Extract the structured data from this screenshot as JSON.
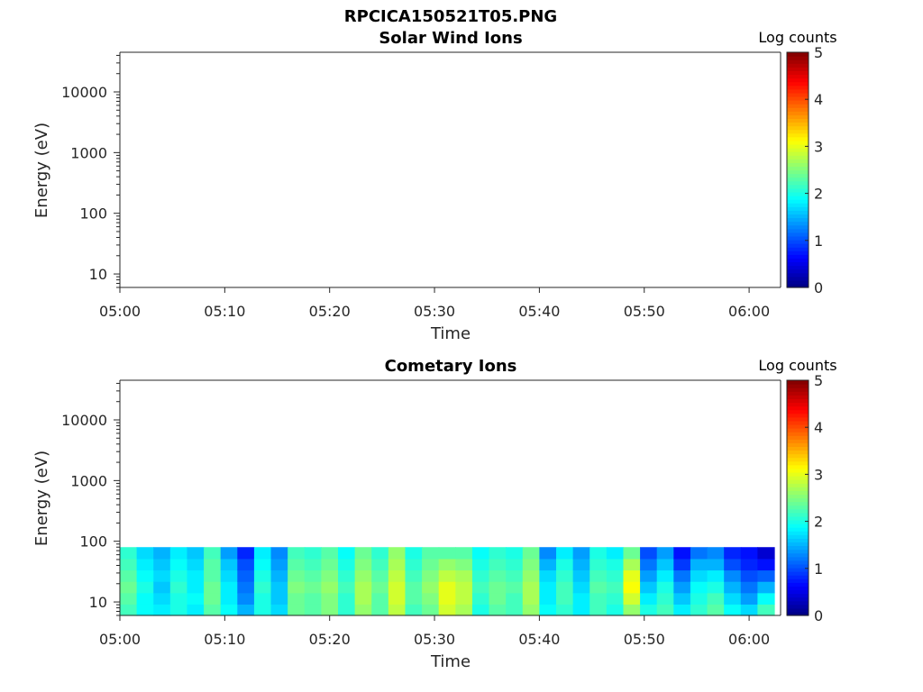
{
  "figure": {
    "title": "RPCICA150521T05.PNG"
  },
  "chart_data": [
    {
      "type": "heatmap",
      "title": "Solar Wind Ions",
      "xlabel": "Time",
      "ylabel": "Energy (eV)",
      "x_ticks": [
        "05:00",
        "05:10",
        "05:20",
        "05:30",
        "05:40",
        "05:50",
        "06:00"
      ],
      "x_range_minutes": [
        0,
        63
      ],
      "y_scale": "log",
      "y_ticks": [
        "10",
        "100",
        "1000",
        "10000"
      ],
      "y_range": [
        6,
        45000
      ],
      "colorbar": {
        "label": "Log counts",
        "range": [
          0,
          5
        ],
        "ticks": [
          "0",
          "1",
          "2",
          "3",
          "4",
          "5"
        ],
        "colormap": "jet"
      },
      "columns": [],
      "energy_range_filled": []
    },
    {
      "type": "heatmap",
      "title": "Cometary Ions",
      "xlabel": "Time",
      "ylabel": "Energy (eV)",
      "x_ticks": [
        "05:00",
        "05:10",
        "05:20",
        "05:30",
        "05:40",
        "05:50",
        "06:00"
      ],
      "x_range_minutes": [
        0,
        63
      ],
      "y_scale": "log",
      "y_ticks": [
        "10",
        "100",
        "1000",
        "10000"
      ],
      "y_range": [
        6,
        45000
      ],
      "colorbar": {
        "label": "Log counts",
        "range": [
          0,
          5
        ],
        "ticks": [
          "0",
          "1",
          "2",
          "3",
          "4",
          "5"
        ],
        "colormap": "jet"
      },
      "energy_range_filled": [
        6,
        80
      ],
      "columns": [
        {
          "t0": 0.0,
          "t1": 1.6,
          "values": [
            2.2,
            2.3,
            2.4,
            2.3,
            2.2,
            2.1
          ]
        },
        {
          "t0": 1.6,
          "t1": 3.2,
          "values": [
            1.9,
            1.9,
            2.0,
            1.9,
            1.8,
            1.7
          ]
        },
        {
          "t0": 3.2,
          "t1": 4.8,
          "values": [
            1.8,
            1.7,
            1.6,
            1.7,
            1.6,
            1.5
          ]
        },
        {
          "t0": 4.8,
          "t1": 6.4,
          "values": [
            2.0,
            2.0,
            2.1,
            2.0,
            1.9,
            1.8
          ]
        },
        {
          "t0": 6.4,
          "t1": 8.0,
          "values": [
            1.8,
            1.9,
            1.8,
            1.8,
            1.7,
            1.6
          ]
        },
        {
          "t0": 8.0,
          "t1": 9.6,
          "values": [
            2.3,
            2.4,
            2.4,
            2.3,
            2.3,
            2.2
          ]
        },
        {
          "t0": 9.6,
          "t1": 11.2,
          "values": [
            1.9,
            1.8,
            1.8,
            1.7,
            1.6,
            1.4
          ]
        },
        {
          "t0": 11.2,
          "t1": 12.8,
          "values": [
            1.5,
            1.3,
            1.2,
            1.1,
            1.0,
            0.8
          ]
        },
        {
          "t0": 12.8,
          "t1": 14.4,
          "values": [
            2.0,
            2.0,
            2.1,
            2.0,
            1.9,
            1.8
          ]
        },
        {
          "t0": 14.4,
          "t1": 16.0,
          "values": [
            1.7,
            1.6,
            1.6,
            1.5,
            1.4,
            1.3
          ]
        },
        {
          "t0": 16.0,
          "t1": 17.6,
          "values": [
            2.4,
            2.4,
            2.5,
            2.4,
            2.3,
            2.2
          ]
        },
        {
          "t0": 17.6,
          "t1": 19.2,
          "values": [
            2.3,
            2.3,
            2.4,
            2.3,
            2.2,
            2.1
          ]
        },
        {
          "t0": 19.2,
          "t1": 20.8,
          "values": [
            2.5,
            2.5,
            2.6,
            2.5,
            2.4,
            2.3
          ]
        },
        {
          "t0": 20.8,
          "t1": 22.4,
          "values": [
            2.1,
            2.1,
            2.2,
            2.1,
            2.0,
            1.9
          ]
        },
        {
          "t0": 22.4,
          "t1": 24.0,
          "values": [
            2.6,
            2.7,
            2.7,
            2.6,
            2.5,
            2.4
          ]
        },
        {
          "t0": 24.0,
          "t1": 25.6,
          "values": [
            2.3,
            2.3,
            2.4,
            2.3,
            2.2,
            2.1
          ]
        },
        {
          "t0": 25.6,
          "t1": 27.2,
          "values": [
            2.8,
            2.9,
            2.9,
            2.8,
            2.7,
            2.6
          ]
        },
        {
          "t0": 27.2,
          "t1": 28.8,
          "values": [
            2.2,
            2.3,
            2.3,
            2.2,
            2.1,
            2.0
          ]
        },
        {
          "t0": 28.8,
          "t1": 30.4,
          "values": [
            2.4,
            2.5,
            2.6,
            2.5,
            2.4,
            2.3
          ]
        },
        {
          "t0": 30.4,
          "t1": 32.0,
          "values": [
            2.9,
            3.0,
            3.0,
            2.8,
            2.6,
            2.3
          ]
        },
        {
          "t0": 32.0,
          "t1": 33.6,
          "values": [
            2.7,
            2.8,
            2.8,
            2.7,
            2.5,
            2.3
          ]
        },
        {
          "t0": 33.6,
          "t1": 35.2,
          "values": [
            2.0,
            2.1,
            2.2,
            2.1,
            2.0,
            1.9
          ]
        },
        {
          "t0": 35.2,
          "t1": 36.8,
          "values": [
            2.3,
            2.4,
            2.4,
            2.3,
            2.2,
            2.1
          ]
        },
        {
          "t0": 36.8,
          "t1": 38.4,
          "values": [
            2.2,
            2.2,
            2.3,
            2.2,
            2.1,
            2.0
          ]
        },
        {
          "t0": 38.4,
          "t1": 40.0,
          "values": [
            2.6,
            2.7,
            2.7,
            2.6,
            2.5,
            2.4
          ]
        },
        {
          "t0": 40.0,
          "t1": 41.6,
          "values": [
            1.9,
            1.8,
            1.8,
            1.7,
            1.5,
            1.3
          ]
        },
        {
          "t0": 41.6,
          "t1": 43.2,
          "values": [
            2.1,
            2.2,
            2.2,
            2.1,
            2.0,
            1.8
          ]
        },
        {
          "t0": 43.2,
          "t1": 44.8,
          "values": [
            1.8,
            1.8,
            1.7,
            1.6,
            1.5,
            1.4
          ]
        },
        {
          "t0": 44.8,
          "t1": 46.4,
          "values": [
            2.2,
            2.2,
            2.3,
            2.2,
            2.1,
            2.0
          ]
        },
        {
          "t0": 46.4,
          "t1": 48.0,
          "values": [
            2.0,
            2.1,
            2.2,
            2.1,
            2.0,
            1.8
          ]
        },
        {
          "t0": 48.0,
          "t1": 49.6,
          "values": [
            2.6,
            2.9,
            3.1,
            3.0,
            2.7,
            2.4
          ]
        },
        {
          "t0": 49.6,
          "t1": 51.2,
          "values": [
            2.0,
            1.8,
            1.6,
            1.4,
            1.2,
            1.0
          ]
        },
        {
          "t0": 51.2,
          "t1": 52.8,
          "values": [
            2.2,
            2.1,
            2.0,
            1.8,
            1.6,
            1.4
          ]
        },
        {
          "t0": 52.8,
          "t1": 54.4,
          "values": [
            1.8,
            1.6,
            1.4,
            1.2,
            0.9,
            0.7
          ]
        },
        {
          "t0": 54.4,
          "t1": 56.0,
          "values": [
            2.1,
            2.0,
            1.9,
            1.7,
            1.5,
            1.2
          ]
        },
        {
          "t0": 56.0,
          "t1": 57.6,
          "values": [
            2.3,
            2.2,
            2.0,
            1.8,
            1.5,
            1.3
          ]
        },
        {
          "t0": 57.6,
          "t1": 59.2,
          "values": [
            1.9,
            1.7,
            1.5,
            1.3,
            1.0,
            0.8
          ]
        },
        {
          "t0": 59.2,
          "t1": 60.8,
          "values": [
            1.7,
            1.4,
            1.2,
            1.0,
            0.8,
            0.7
          ]
        },
        {
          "t0": 60.8,
          "t1": 62.4,
          "values": [
            2.2,
            1.9,
            1.5,
            1.1,
            0.7,
            0.4
          ]
        }
      ]
    }
  ]
}
